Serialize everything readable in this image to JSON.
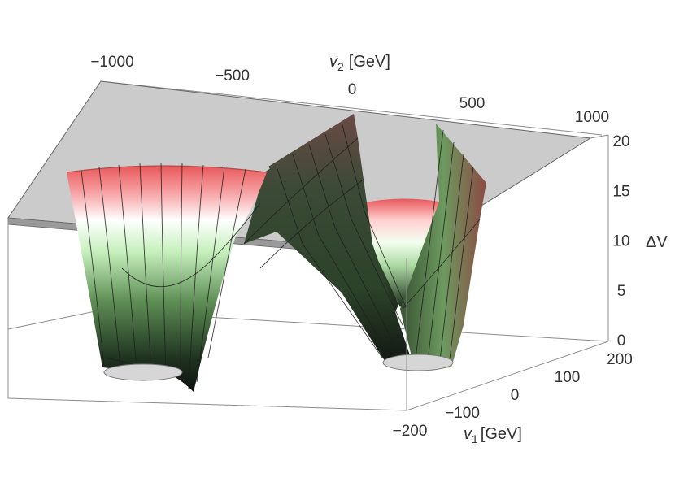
{
  "chart_data": {
    "type": "surface3d",
    "title": "",
    "axes": {
      "x": {
        "label_var": "v",
        "label_sub": "1",
        "label_unit": "[GeV]",
        "range": [
          -200,
          200
        ],
        "ticks": [
          {
            "value": -200,
            "label": "−200"
          },
          {
            "value": -100,
            "label": "−100"
          },
          {
            "value": 0,
            "label": "0"
          },
          {
            "value": 100,
            "label": "100"
          },
          {
            "value": 200,
            "label": "200"
          }
        ]
      },
      "y": {
        "label_var": "v",
        "label_sub": "2",
        "label_unit": "[GeV]",
        "range": [
          -1000,
          1000
        ],
        "ticks": [
          {
            "value": -1000,
            "label": "−1000"
          },
          {
            "value": -500,
            "label": "−500"
          },
          {
            "value": 0,
            "label": "0"
          },
          {
            "value": 500,
            "label": "500"
          },
          {
            "value": 1000,
            "label": "1000"
          }
        ]
      },
      "z": {
        "label": "ΔV",
        "range": [
          0,
          20
        ],
        "ticks": [
          {
            "value": 0,
            "label": "0"
          },
          {
            "value": 5,
            "label": "5"
          },
          {
            "value": 10,
            "label": "10"
          },
          {
            "value": 15,
            "label": "15"
          },
          {
            "value": 20,
            "label": "20"
          }
        ]
      }
    },
    "surface": {
      "description_of_minima": [
        {
          "v1": 0,
          "v2": -650,
          "deltaV": 0
        },
        {
          "v1": 0,
          "v2": 470,
          "deltaV": 0
        }
      ],
      "clip_plane_deltaV": 20,
      "color_scale": [
        "#1a1a1a",
        "#3f6b3a",
        "#c9f2c0",
        "#ffffff",
        "#ffb3b3",
        "#e85a5a"
      ]
    },
    "grid": false,
    "legend": "none"
  }
}
